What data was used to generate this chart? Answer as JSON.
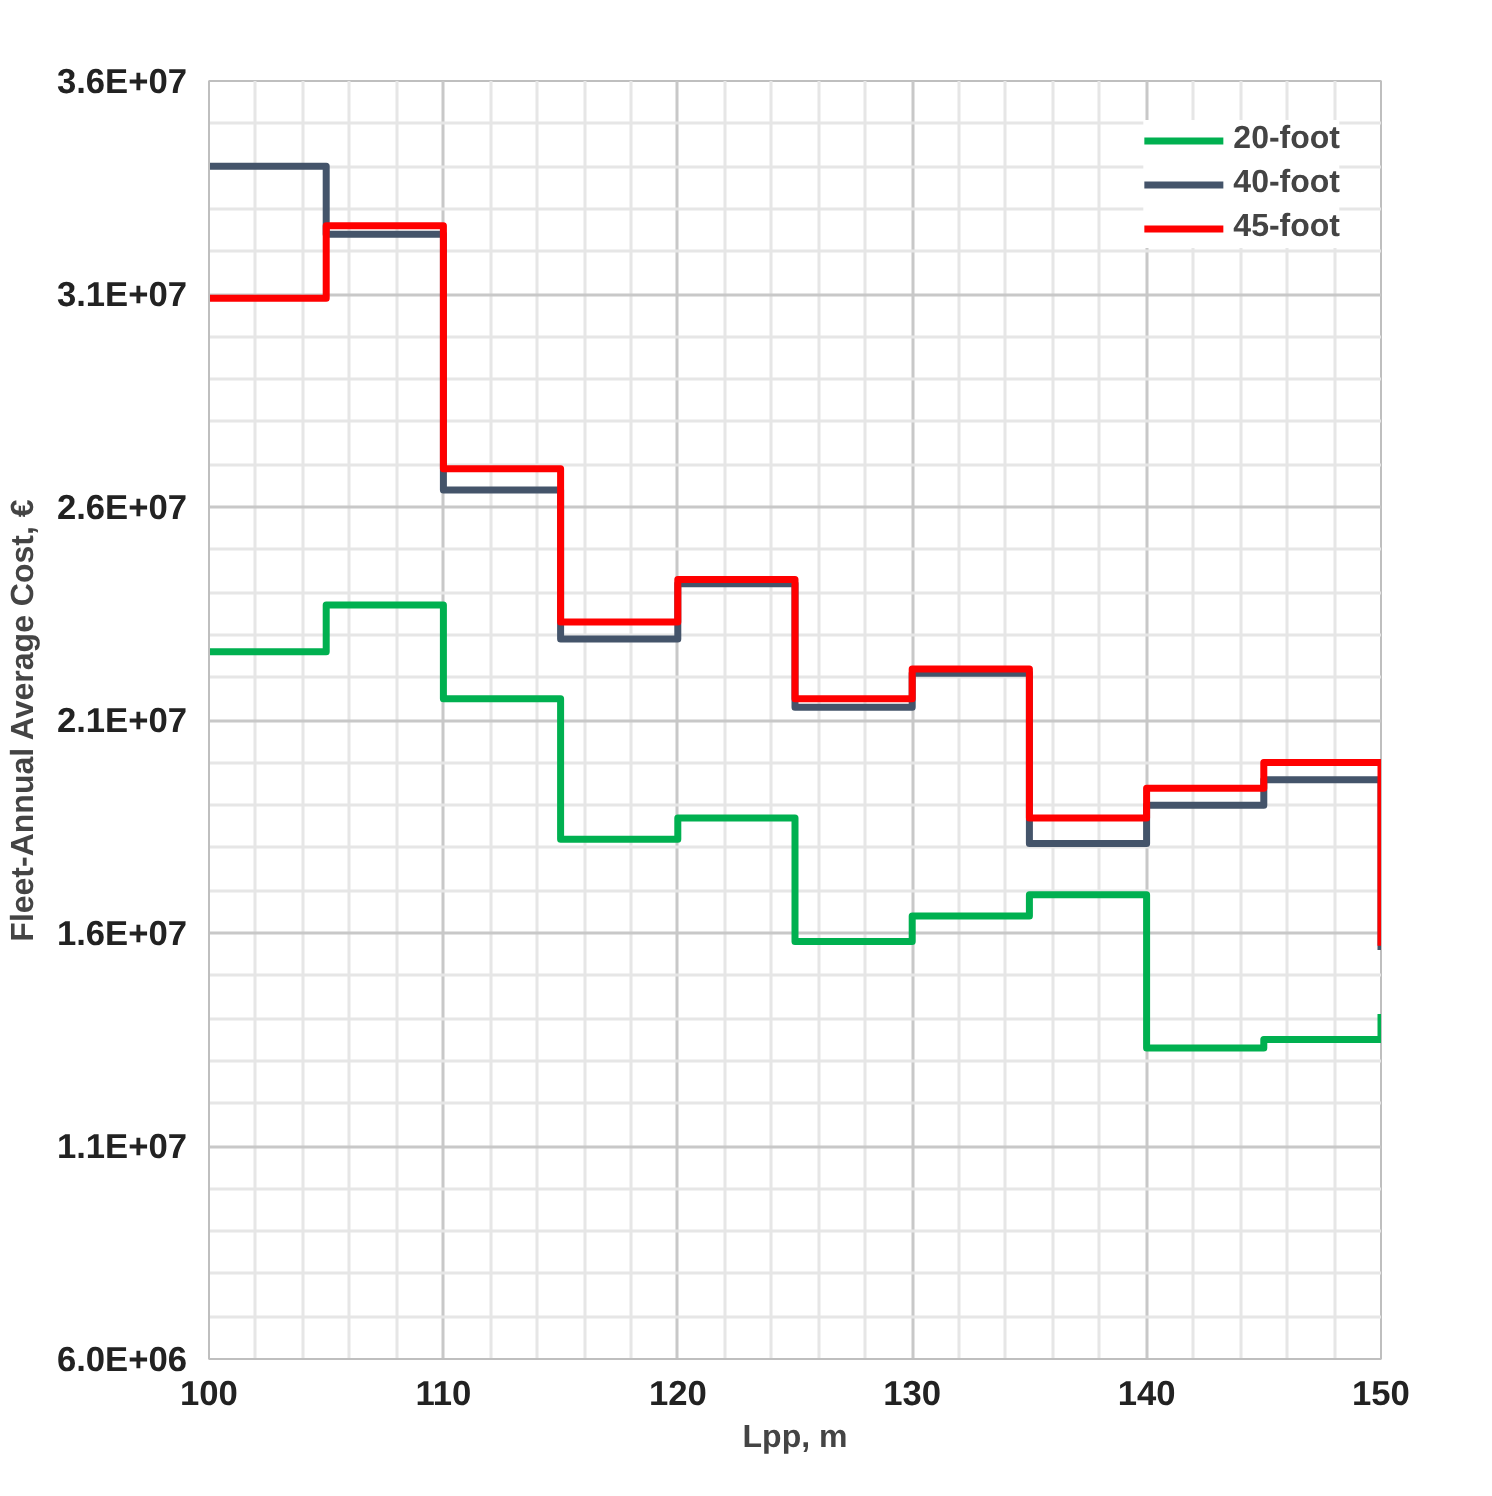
{
  "chart_data": {
    "type": "step",
    "xlabel": "Lpp, m",
    "ylabel": "Fleet-Annual Average Cost, €",
    "x": [
      100,
      105,
      110,
      115,
      120,
      125,
      130,
      135,
      140,
      145,
      150
    ],
    "series": [
      {
        "name": "20-foot",
        "color": "#00b050",
        "values": [
          22600000,
          23700000,
          21500000,
          18200000,
          18700000,
          15800000,
          16400000,
          16900000,
          13300000,
          13500000,
          14100000
        ]
      },
      {
        "name": "40-foot",
        "color": "#44546a",
        "values": [
          34000000,
          32400000,
          26400000,
          22900000,
          24200000,
          21300000,
          22100000,
          18100000,
          19000000,
          19600000,
          15600000
        ]
      },
      {
        "name": "45-foot",
        "color": "#ff0000",
        "values": [
          30900000,
          32600000,
          26900000,
          23300000,
          24300000,
          21500000,
          22200000,
          18700000,
          19400000,
          20000000,
          15700000
        ]
      }
    ],
    "xlim": [
      100,
      150
    ],
    "xticks": [
      100,
      110,
      120,
      130,
      140,
      150
    ],
    "ylim": [
      6000000,
      36000000
    ],
    "yticks": [
      {
        "value": 6000000,
        "label": "6.0E+06"
      },
      {
        "value": 11000000,
        "label": "1.1E+07"
      },
      {
        "value": 16000000,
        "label": "1.6E+07"
      },
      {
        "value": 21000000,
        "label": "2.1E+07"
      },
      {
        "value": 26000000,
        "label": "2.6E+07"
      },
      {
        "value": 31000000,
        "label": "3.1E+07"
      },
      {
        "value": 36000000,
        "label": "3.6E+07"
      }
    ],
    "grid": true,
    "legend": "top right",
    "line_style": "solid"
  }
}
